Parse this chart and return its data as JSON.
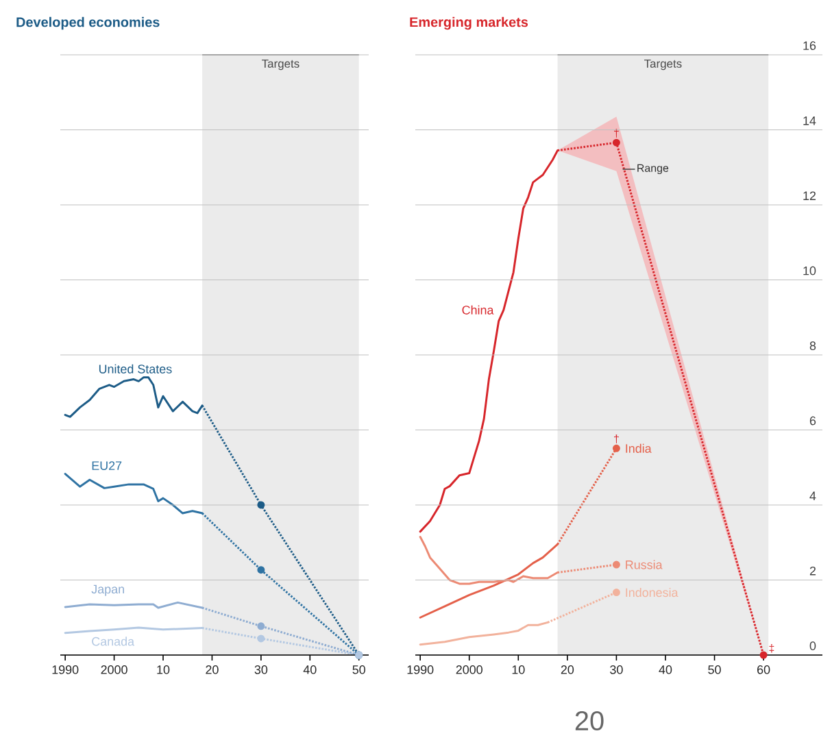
{
  "chart_data": [
    {
      "type": "line",
      "title": "Developed economies",
      "xlim": [
        1989,
        2052
      ],
      "ylim": [
        0,
        16
      ],
      "xticks": [
        1990,
        2000,
        {
          "value": 2010,
          "label": "10"
        },
        {
          "value": 2020,
          "label": "20"
        },
        {
          "value": 2030,
          "label": "30"
        },
        {
          "value": 2040,
          "label": "40"
        },
        {
          "value": 2050,
          "label": "50"
        }
      ],
      "yticks": [
        0,
        2,
        4,
        6,
        8,
        10,
        12,
        14,
        16
      ],
      "grid": "y",
      "tick_labels": "x",
      "bands": [
        {
          "axis": "x",
          "from": 2018,
          "to": 2050,
          "label": "Targets",
          "color": "#ebebeb"
        }
      ],
      "series": [
        {
          "name": "United States",
          "color": "#1d5c87",
          "x": [
            1990,
            1991,
            1993,
            1995,
            1997,
            1999,
            2000,
            2002,
            2004,
            2005,
            2006,
            2007,
            2008,
            2009,
            2010,
            2012,
            2014,
            2016,
            2017,
            2018
          ],
          "values": [
            6.4,
            6.35,
            6.6,
            6.8,
            7.1,
            7.2,
            7.15,
            7.3,
            7.35,
            7.3,
            7.4,
            7.4,
            7.2,
            6.6,
            6.9,
            6.5,
            6.75,
            6.5,
            6.45,
            6.65
          ]
        },
        {
          "color": "#1d5c87",
          "x": [
            2018,
            2030,
            2050
          ],
          "values": [
            6.65,
            4.0,
            0
          ],
          "line_style": "dotted",
          "marker": "circle"
        },
        {
          "name": "EU27",
          "color": "#2f73a3",
          "x": [
            1990,
            1993,
            1995,
            1998,
            2000,
            2003,
            2006,
            2008,
            2009,
            2010,
            2012,
            2014,
            2016,
            2018
          ],
          "values": [
            4.83,
            4.49,
            4.67,
            4.45,
            4.49,
            4.55,
            4.55,
            4.43,
            4.1,
            4.18,
            4.0,
            3.78,
            3.84,
            3.78
          ]
        },
        {
          "color": "#2f73a3",
          "x": [
            2018,
            2030,
            2050
          ],
          "values": [
            3.78,
            2.27,
            0
          ],
          "line_style": "dotted",
          "marker": "circle"
        },
        {
          "name": "Japan",
          "color": "#8eacd1",
          "x": [
            1990,
            1995,
            2000,
            2005,
            2008,
            2009,
            2013,
            2018
          ],
          "values": [
            1.28,
            1.35,
            1.33,
            1.35,
            1.35,
            1.26,
            1.4,
            1.26
          ]
        },
        {
          "color": "#8eacd1",
          "x": [
            2018,
            2030,
            2050
          ],
          "values": [
            1.26,
            0.77,
            0
          ],
          "line_style": "dotted",
          "marker": "circle"
        },
        {
          "name": "Canada",
          "color": "#b3c8e2",
          "x": [
            1990,
            1995,
            2000,
            2005,
            2010,
            2018
          ],
          "values": [
            0.59,
            0.64,
            0.68,
            0.73,
            0.68,
            0.72
          ]
        },
        {
          "color": "#b3c8e2",
          "x": [
            2018,
            2030,
            2050
          ],
          "values": [
            0.72,
            0.44,
            0
          ],
          "line_style": "dotted",
          "marker": "circle"
        }
      ]
    },
    {
      "type": "line",
      "title": "Emerging markets",
      "xlim": [
        1989,
        2072
      ],
      "ylim": [
        0,
        16
      ],
      "xticks": [
        1990,
        2000,
        {
          "value": 2010,
          "label": "10"
        },
        {
          "value": 2020,
          "label": "20"
        },
        {
          "value": 2030,
          "label": "30"
        },
        {
          "value": 2040,
          "label": "40"
        },
        {
          "value": 2050,
          "label": "50"
        },
        {
          "value": 2060,
          "label": "60"
        }
      ],
      "yticks": [
        0,
        2,
        4,
        6,
        8,
        10,
        12,
        14,
        16
      ],
      "grid": "y",
      "bands": [
        {
          "axis": "x",
          "from": 2018,
          "to": 2061,
          "label": "Targets",
          "color": "#ebebeb"
        }
      ],
      "annotations": [
        {
          "text": "†",
          "x": 2030,
          "y": 13.66
        },
        {
          "text": "Range",
          "x": 2031,
          "y": 12.95
        },
        {
          "text": "†",
          "x": 2030,
          "y": 5.51
        },
        {
          "text": "‡",
          "x": 2060,
          "y": 0
        },
        "20"
      ],
      "series": [
        {
          "name": "China",
          "color": "#d7262b",
          "x": [
            1990,
            1992,
            1994,
            1995,
            1996,
            1998,
            2000,
            2001,
            2002,
            2003,
            2004,
            2005,
            2006,
            2007,
            2008,
            2009,
            2010,
            2011,
            2012,
            2013,
            2014,
            2015,
            2016,
            2017,
            2018
          ],
          "values": [
            3.29,
            3.57,
            4.0,
            4.43,
            4.5,
            4.79,
            4.85,
            5.28,
            5.71,
            6.3,
            7.35,
            8.1,
            8.9,
            9.2,
            9.7,
            10.2,
            11.1,
            11.9,
            12.2,
            12.6,
            12.7,
            12.8,
            13.0,
            13.2,
            13.45
          ]
        },
        {
          "color": "#d7262b",
          "x": [
            2018,
            2030,
            2060
          ],
          "values": [
            13.45,
            13.66,
            0
          ],
          "lower": [
            13.45,
            12.9,
            0
          ],
          "upper": [
            13.45,
            14.35,
            0
          ],
          "line_style": "dotted",
          "marker": "circle"
        },
        {
          "name": "India",
          "color": "#e4604a",
          "x": [
            1990,
            1995,
            2000,
            2005,
            2010,
            2013,
            2015,
            2018
          ],
          "values": [
            1.0,
            1.3,
            1.6,
            1.85,
            2.15,
            2.45,
            2.6,
            2.95
          ]
        },
        {
          "color": "#e4604a",
          "x": [
            2018,
            2030
          ],
          "values": [
            2.95,
            5.51
          ],
          "line_style": "dotted",
          "marker": "circle"
        },
        {
          "name": "Russia",
          "color": "#ec8a74",
          "x": [
            1990,
            1991,
            1992,
            1994,
            1996,
            1998,
            2000,
            2002,
            2005,
            2008,
            2009,
            2011,
            2013,
            2016,
            2018
          ],
          "values": [
            3.15,
            2.9,
            2.6,
            2.3,
            2.0,
            1.9,
            1.9,
            1.95,
            1.95,
            2.0,
            1.95,
            2.1,
            2.05,
            2.05,
            2.2
          ]
        },
        {
          "color": "#ec8a74",
          "x": [
            2018,
            2030
          ],
          "values": [
            2.2,
            2.41
          ],
          "line_style": "dotted",
          "marker": "circle"
        },
        {
          "name": "Indonesia",
          "color": "#f2b29c",
          "x": [
            1990,
            1995,
            2000,
            2005,
            2008,
            2010,
            2012,
            2014,
            2016
          ],
          "values": [
            0.28,
            0.35,
            0.48,
            0.55,
            0.6,
            0.65,
            0.8,
            0.8,
            0.87
          ]
        },
        {
          "color": "#f2b29c",
          "x": [
            2016,
            2030
          ],
          "values": [
            0.87,
            1.67
          ],
          "line_style": "dotted",
          "marker": "circle"
        }
      ]
    }
  ]
}
